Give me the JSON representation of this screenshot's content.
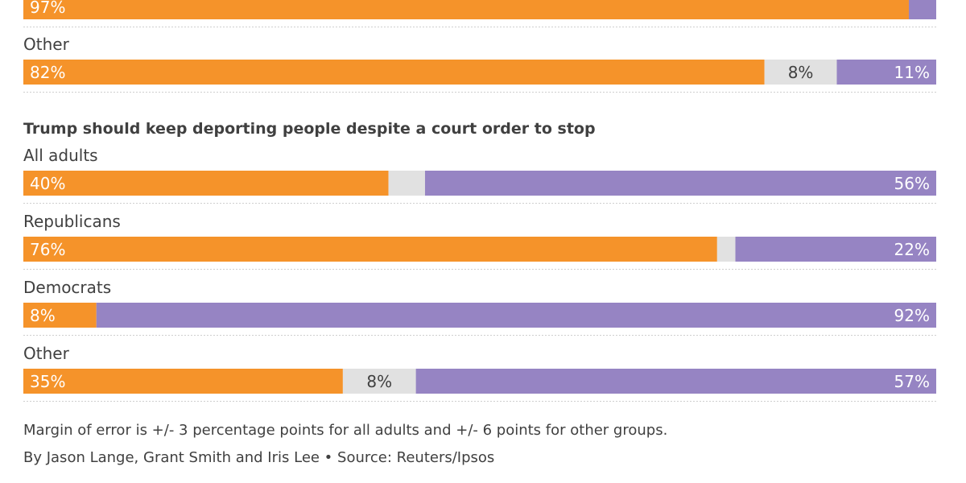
{
  "colors": {
    "support": "#f5932a",
    "neutral": "#e1e1e1",
    "oppose": "#9684c3"
  },
  "chart_data": [
    {
      "type": "bar",
      "stacked": true,
      "orientation": "horizontal",
      "title": "",
      "series_order": [
        "support",
        "neutral",
        "oppose"
      ],
      "categories": [
        "",
        "Other"
      ],
      "rows": [
        {
          "label": "",
          "values": [
            97,
            0,
            3
          ],
          "labels": [
            "97%",
            "",
            ""
          ]
        },
        {
          "label": "Other",
          "values": [
            82,
            8,
            11
          ],
          "labels": [
            "82%",
            "8%",
            "11%"
          ]
        }
      ]
    },
    {
      "type": "bar",
      "stacked": true,
      "orientation": "horizontal",
      "title": "Trump should keep deporting people despite a court order to stop",
      "series_order": [
        "support",
        "neutral",
        "oppose"
      ],
      "categories": [
        "All adults",
        "Republicans",
        "Democrats",
        "Other"
      ],
      "rows": [
        {
          "label": "All adults",
          "values": [
            40,
            4,
            56
          ],
          "labels": [
            "40%",
            "",
            "56%"
          ]
        },
        {
          "label": "Republicans",
          "values": [
            76,
            2,
            22
          ],
          "labels": [
            "76%",
            "",
            "22%"
          ]
        },
        {
          "label": "Democrats",
          "values": [
            8,
            0,
            92
          ],
          "labels": [
            "8%",
            "",
            "92%"
          ]
        },
        {
          "label": "Other",
          "values": [
            35,
            8,
            57
          ],
          "labels": [
            "35%",
            "8%",
            "57%"
          ]
        }
      ]
    }
  ],
  "footer": {
    "note": "Margin of error is +/- 3 percentage points for all adults and +/- 6 points for other groups.",
    "credit": "By Jason Lange, Grant Smith and Iris Lee • Source: Reuters/Ipsos"
  }
}
